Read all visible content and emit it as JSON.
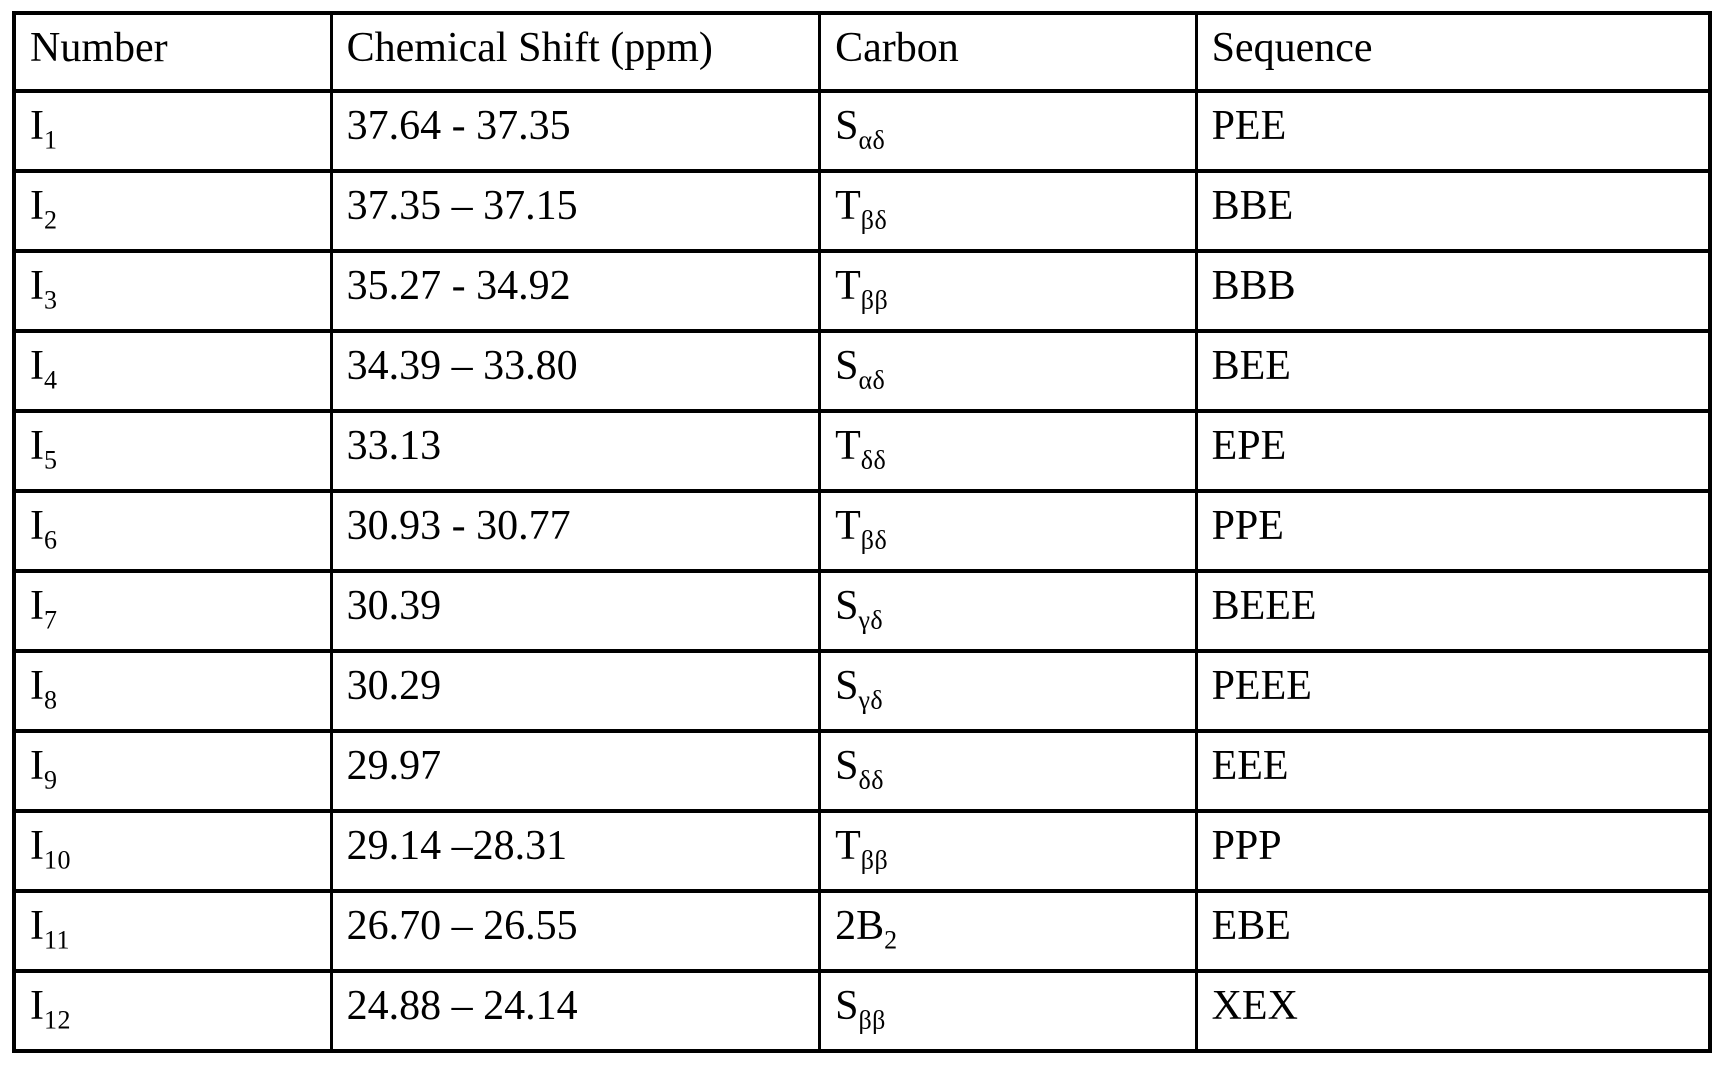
{
  "table": {
    "headers": [
      {
        "id": "number",
        "label": "Number"
      },
      {
        "id": "shift",
        "label": "Chemical Shift (ppm)"
      },
      {
        "id": "carbon",
        "label": "Carbon"
      },
      {
        "id": "sequence",
        "label": "Sequence"
      }
    ],
    "rows": [
      {
        "number": {
          "base": "I",
          "sub": "1"
        },
        "shift": "37.64 - 37.35",
        "carbon": {
          "base": "S",
          "sub": "αδ"
        },
        "sequence": "PEE"
      },
      {
        "number": {
          "base": "I",
          "sub": "2"
        },
        "shift": "37.35 – 37.15",
        "carbon": {
          "base": "T",
          "sub": "βδ"
        },
        "sequence": "BBE"
      },
      {
        "number": {
          "base": "I",
          "sub": "3"
        },
        "shift": "35.27 - 34.92",
        "carbon": {
          "base": "T",
          "sub": "ββ"
        },
        "sequence": "BBB"
      },
      {
        "number": {
          "base": "I",
          "sub": "4"
        },
        "shift": "34.39 – 33.80",
        "carbon": {
          "base": "S",
          "sub": "αδ"
        },
        "sequence": "BEE"
      },
      {
        "number": {
          "base": "I",
          "sub": "5"
        },
        "shift": "33.13",
        "carbon": {
          "base": "T",
          "sub": "δδ"
        },
        "sequence": "EPE"
      },
      {
        "number": {
          "base": "I",
          "sub": "6"
        },
        "shift": "30.93 - 30.77",
        "carbon": {
          "base": "T",
          "sub": "βδ"
        },
        "sequence": "PPE"
      },
      {
        "number": {
          "base": "I",
          "sub": "7"
        },
        "shift": "30.39",
        "carbon": {
          "base": "S",
          "sub": "γδ"
        },
        "sequence": "BEEE"
      },
      {
        "number": {
          "base": "I",
          "sub": "8"
        },
        "shift": "30.29",
        "carbon": {
          "base": "S",
          "sub": "γδ"
        },
        "sequence": "PEEE"
      },
      {
        "number": {
          "base": "I",
          "sub": "9"
        },
        "shift": "29.97",
        "carbon": {
          "base": "S",
          "sub": "δδ"
        },
        "sequence": "EEE"
      },
      {
        "number": {
          "base": "I",
          "sub": "10"
        },
        "shift": "29.14 –28.31",
        "carbon": {
          "base": "T",
          "sub": "ββ"
        },
        "sequence": "PPP"
      },
      {
        "number": {
          "base": "I",
          "sub": "11"
        },
        "shift": "26.70 – 26.55",
        "carbon": {
          "base": "2B",
          "sub": "2"
        },
        "sequence": "EBE"
      },
      {
        "number": {
          "base": "I",
          "sub": "12"
        },
        "shift": "24.88 – 24.14",
        "carbon": {
          "base": "S",
          "sub": "ββ"
        },
        "sequence": "XEX"
      }
    ]
  }
}
